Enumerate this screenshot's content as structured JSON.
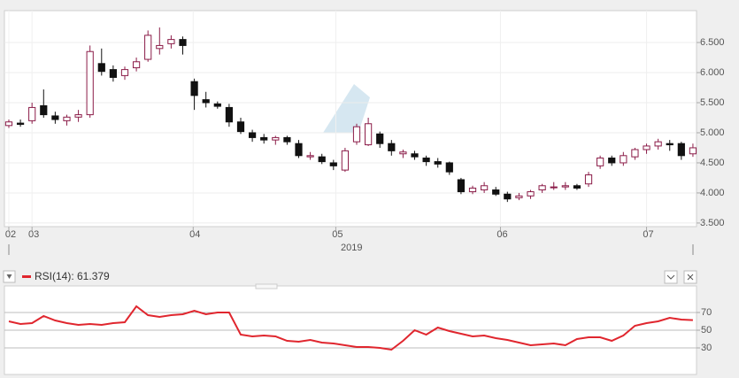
{
  "chart_data": [
    {
      "type": "candlestick",
      "open": [
        5.12,
        5.16,
        5.2,
        5.45,
        5.28,
        5.2,
        5.26,
        5.3,
        6.15,
        6.05,
        5.95,
        6.08,
        6.22,
        6.4,
        6.48,
        6.55,
        5.85,
        5.55,
        5.48,
        5.42,
        5.18,
        5.0,
        4.92,
        4.88,
        4.92,
        4.82,
        4.6,
        4.6,
        4.5,
        4.38,
        4.85,
        4.8,
        4.98,
        4.82,
        4.65,
        4.65,
        4.58,
        4.52,
        4.5,
        4.22,
        4.02,
        4.05,
        4.05,
        3.98,
        3.92,
        3.95,
        4.05,
        4.1,
        4.1,
        4.12,
        4.15,
        4.45,
        4.58,
        4.5,
        4.6,
        4.72,
        4.78,
        4.82,
        4.82,
        4.65
      ],
      "high": [
        5.22,
        5.22,
        5.5,
        5.72,
        5.35,
        5.3,
        5.38,
        6.45,
        6.4,
        6.12,
        6.1,
        6.25,
        6.7,
        6.75,
        6.62,
        6.6,
        5.9,
        5.68,
        5.52,
        5.48,
        5.25,
        5.05,
        4.98,
        4.95,
        4.95,
        4.88,
        4.68,
        4.65,
        4.55,
        4.75,
        5.15,
        5.25,
        5.02,
        4.88,
        4.72,
        4.7,
        4.62,
        4.58,
        4.52,
        4.25,
        4.12,
        4.18,
        4.1,
        4.02,
        4.0,
        4.05,
        4.15,
        4.18,
        4.18,
        4.15,
        4.35,
        4.62,
        4.62,
        4.68,
        4.75,
        4.82,
        4.9,
        4.88,
        4.85,
        4.82
      ],
      "low": [
        5.08,
        5.1,
        5.15,
        5.25,
        5.15,
        5.12,
        5.18,
        5.25,
        5.95,
        5.85,
        5.88,
        6.02,
        6.18,
        6.3,
        6.4,
        6.3,
        5.38,
        5.42,
        5.4,
        5.1,
        4.98,
        4.85,
        4.82,
        4.8,
        4.8,
        4.58,
        4.55,
        4.48,
        4.38,
        4.35,
        4.8,
        4.78,
        4.75,
        4.62,
        4.58,
        4.55,
        4.45,
        4.42,
        4.3,
        3.98,
        3.98,
        4.0,
        3.95,
        3.85,
        3.88,
        3.9,
        4.0,
        4.05,
        4.05,
        4.05,
        4.1,
        4.4,
        4.45,
        4.45,
        4.55,
        4.65,
        4.72,
        4.7,
        4.55,
        4.6
      ],
      "close": [
        5.18,
        5.14,
        5.42,
        5.3,
        5.22,
        5.26,
        5.3,
        6.35,
        6.02,
        5.92,
        6.05,
        6.18,
        6.62,
        6.45,
        6.55,
        6.45,
        5.62,
        5.5,
        5.44,
        5.18,
        5.02,
        4.92,
        4.88,
        4.92,
        4.85,
        4.62,
        4.62,
        4.52,
        4.45,
        4.7,
        5.1,
        5.15,
        4.82,
        4.7,
        4.68,
        4.6,
        4.52,
        4.48,
        4.35,
        4.02,
        4.08,
        4.12,
        3.98,
        3.9,
        3.95,
        4.02,
        4.12,
        4.1,
        4.12,
        4.08,
        4.3,
        4.58,
        4.5,
        4.62,
        4.72,
        4.78,
        4.85,
        4.8,
        4.62,
        4.75
      ],
      "up_color": "#ffffff",
      "up_edge": "#8b1c48",
      "down_color": "#111111",
      "xlim": [
        -0.38,
        59.31
      ],
      "xticks": [
        {
          "value": 0,
          "label": "02"
        },
        {
          "value": 2,
          "label": "03"
        },
        {
          "value": 15.9,
          "label": "04"
        },
        {
          "value": 28.2,
          "label": "05"
        },
        {
          "value": 42.4,
          "label": "06"
        },
        {
          "value": 55,
          "label": "07"
        }
      ],
      "x_year_label": "2019",
      "ylim": [
        3.44,
        7.03
      ],
      "yticks": [
        {
          "value": 3.5,
          "label": "3.500"
        },
        {
          "value": 4,
          "label": "4.000"
        },
        {
          "value": 4.5,
          "label": "4.500"
        },
        {
          "value": 5,
          "label": "5.000"
        },
        {
          "value": 5.5,
          "label": "5.500"
        },
        {
          "value": 6,
          "label": "6.000"
        },
        {
          "value": 6.5,
          "label": "6.500"
        }
      ],
      "grid": true
    },
    {
      "type": "line",
      "series": [
        {
          "name": "RSI(14): 61.379",
          "color": "#e0262e",
          "values": [
            60,
            57,
            58,
            66,
            61,
            58,
            56,
            57,
            56,
            58,
            59,
            77,
            67,
            65,
            67,
            68,
            72,
            68,
            70,
            70,
            45,
            43,
            44,
            43,
            38,
            37,
            39,
            36,
            35,
            33,
            31,
            31,
            30,
            28,
            38,
            50,
            45,
            53,
            49,
            46,
            43,
            44,
            41,
            39,
            36,
            33,
            34,
            35,
            33,
            40,
            42,
            42,
            38,
            44,
            55,
            58,
            60,
            64,
            62,
            61.379
          ]
        }
      ],
      "xlim": [
        -0.38,
        59.31
      ],
      "ylim": [
        0,
        100
      ],
      "yticks": [
        30,
        50,
        70
      ],
      "grid": true
    }
  ]
}
